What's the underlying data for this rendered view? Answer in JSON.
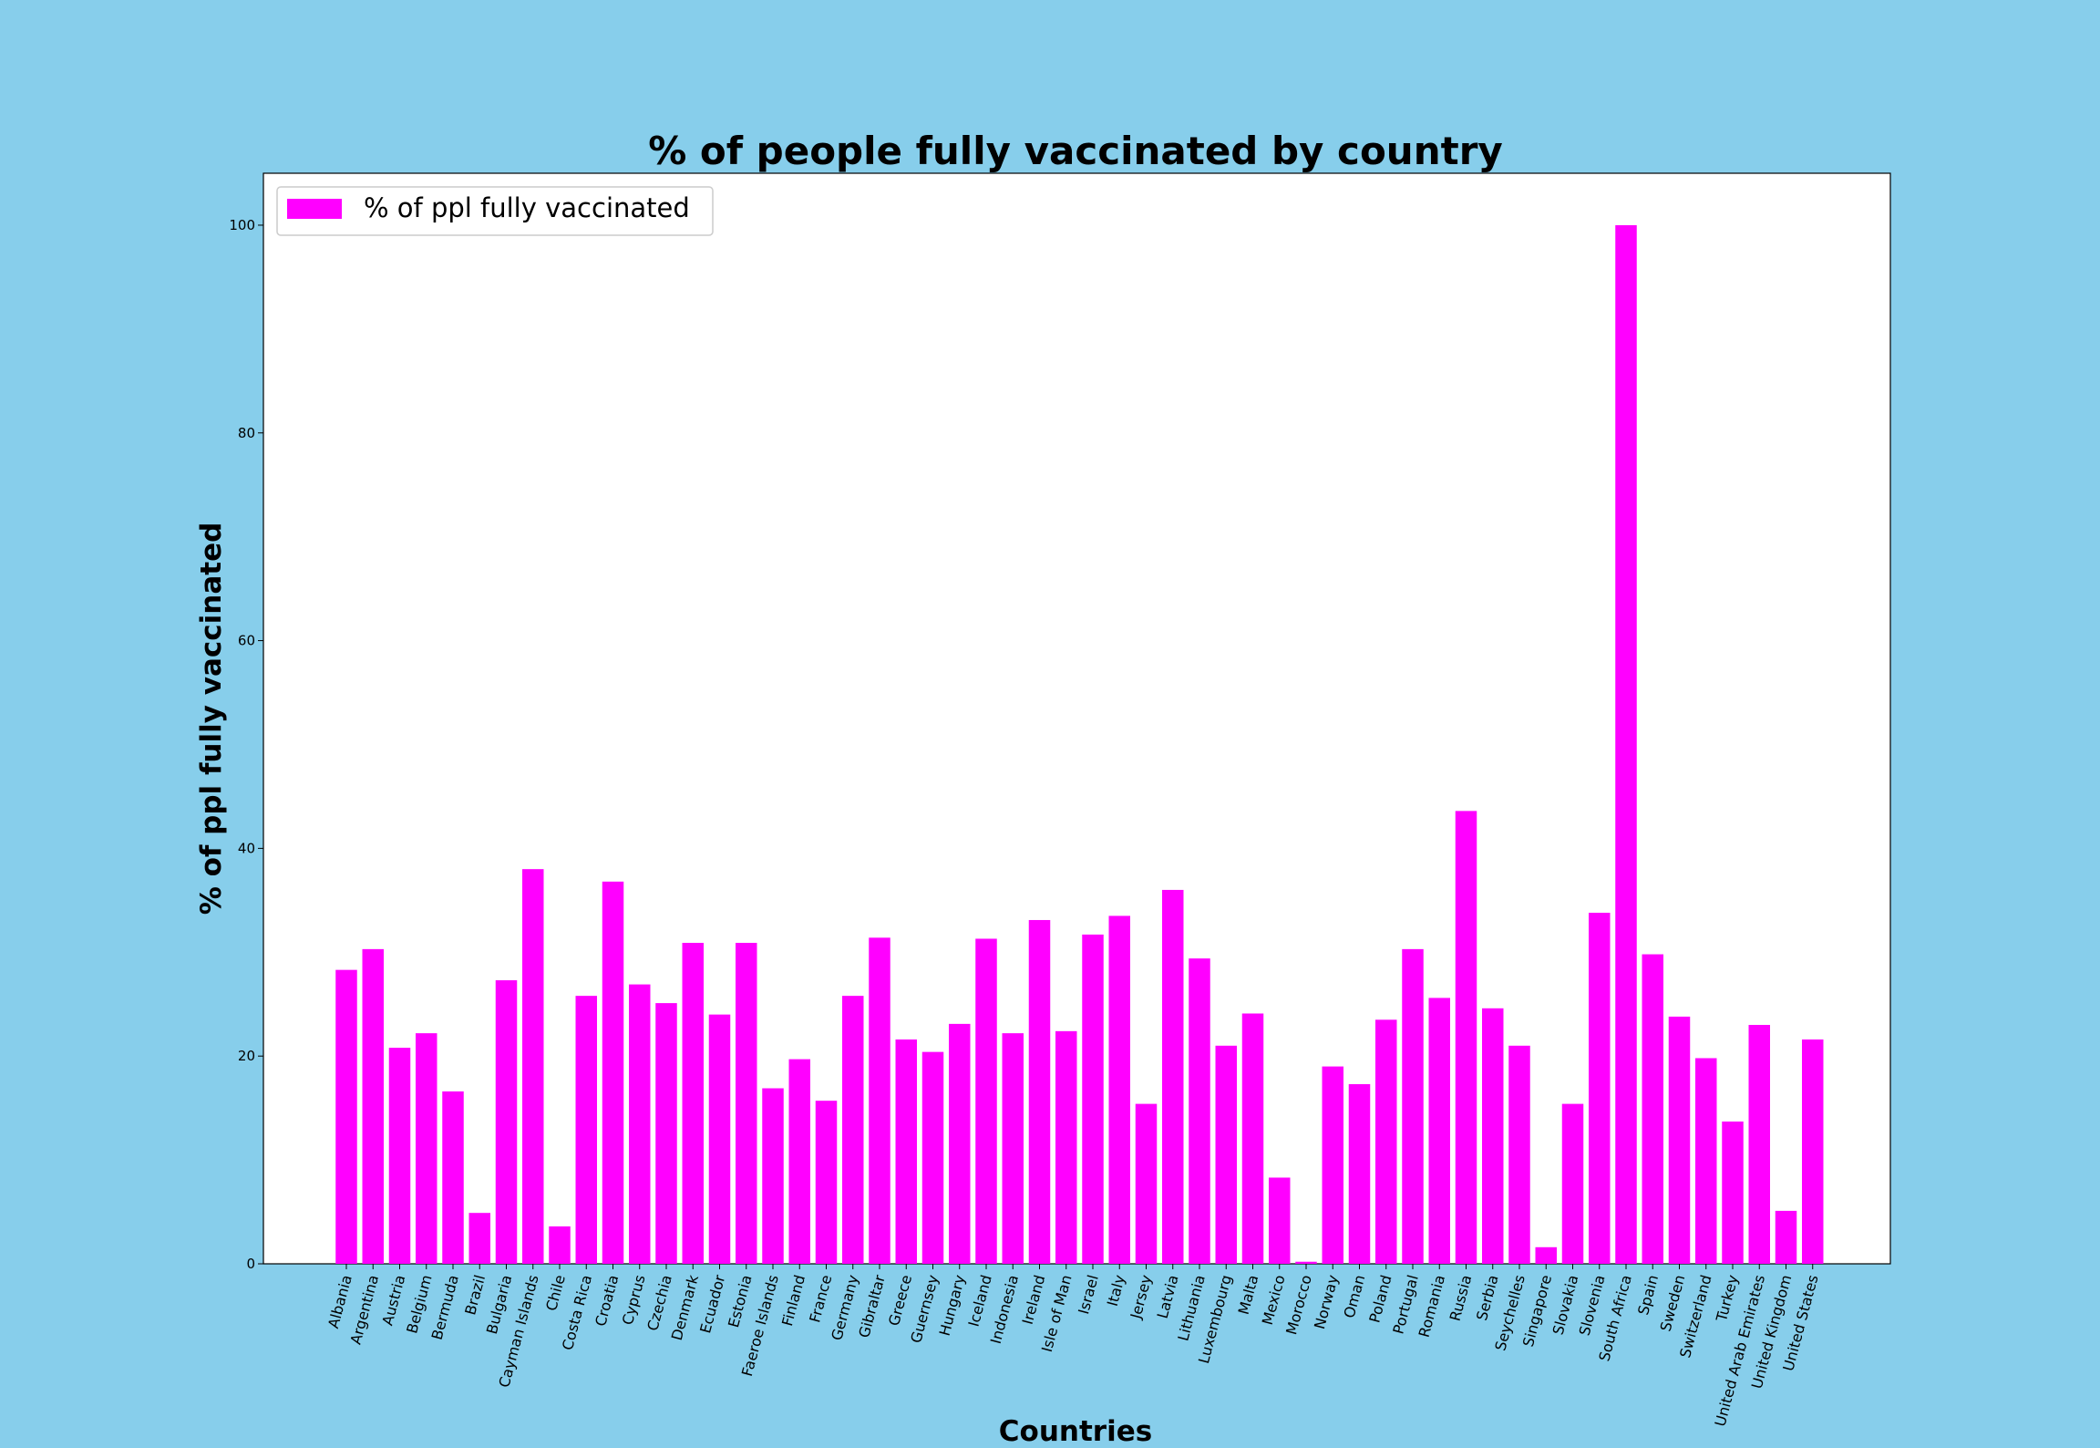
{
  "colors": {
    "figure_background": "#87ceeb",
    "plot_background": "#ffffff",
    "bar": "#ff00ff",
    "text": "#000000"
  },
  "chart_data": {
    "type": "bar",
    "title": "% of people fully vaccinated by country",
    "xlabel": "Countries",
    "ylabel": "% of ppl fully vaccinated",
    "ylim": [
      0,
      105
    ],
    "yticks": [
      0,
      20,
      40,
      60,
      80,
      100
    ],
    "grid": false,
    "legend_position": "top-left",
    "categories": [
      "Albania",
      "Argentina",
      "Austria",
      "Belgium",
      "Bermuda",
      "Brazil",
      "Bulgaria",
      "Cayman Islands",
      "Chile",
      "Costa Rica",
      "Croatia",
      "Cyprus",
      "Czechia",
      "Denmark",
      "Ecuador",
      "Estonia",
      "Faeroe Islands",
      "Finland",
      "France",
      "Germany",
      "Gibraltar",
      "Greece",
      "Guernsey",
      "Hungary",
      "Iceland",
      "Indonesia",
      "Ireland",
      "Isle of Man",
      "Israel",
      "Italy",
      "Jersey",
      "Latvia",
      "Lithuania",
      "Luxembourg",
      "Malta",
      "Mexico",
      "Morocco",
      "Norway",
      "Oman",
      "Poland",
      "Portugal",
      "Romania",
      "Russia",
      "Serbia",
      "Seychelles",
      "Singapore",
      "Slovakia",
      "Slovenia",
      "South Africa",
      "Spain",
      "Sweden",
      "Switzerland",
      "Turkey",
      "United Arab Emirates",
      "United Kingdom",
      "United States"
    ],
    "series": [
      {
        "name": "% of ppl fully vaccinated",
        "color": "#ff00ff",
        "values": [
          28.3,
          30.3,
          20.8,
          22.2,
          16.6,
          4.9,
          27.3,
          38.0,
          3.6,
          25.8,
          36.8,
          26.9,
          25.1,
          30.9,
          24.0,
          30.9,
          16.9,
          19.7,
          15.7,
          25.8,
          31.4,
          21.6,
          20.4,
          23.1,
          31.3,
          22.2,
          33.1,
          22.4,
          31.7,
          33.5,
          15.4,
          36.0,
          29.4,
          21.0,
          24.1,
          8.3,
          0.2,
          19.0,
          17.3,
          23.5,
          30.3,
          25.6,
          43.6,
          24.6,
          21.0,
          1.6,
          15.4,
          33.8,
          100.0,
          29.8,
          23.8,
          19.8,
          13.7,
          23.0,
          5.1,
          21.6
        ]
      }
    ]
  }
}
